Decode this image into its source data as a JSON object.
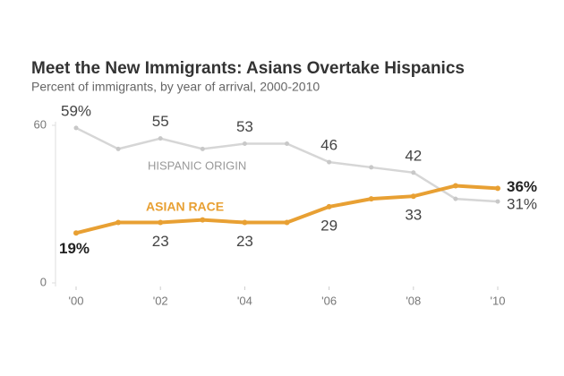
{
  "chart_data": {
    "type": "line",
    "title": "Meet the New Immigrants: Asians Overtake Hispanics",
    "subtitle": "Percent of immigrants, by year of arrival, 2000-2010",
    "x": [
      2000,
      2001,
      2002,
      2003,
      2004,
      2005,
      2006,
      2007,
      2008,
      2009,
      2010
    ],
    "xlim": [
      2000,
      2010
    ],
    "xticks": [
      {
        "value": 2000,
        "label": "'00"
      },
      {
        "value": 2002,
        "label": "'02"
      },
      {
        "value": 2004,
        "label": "'04"
      },
      {
        "value": 2006,
        "label": "'06"
      },
      {
        "value": 2008,
        "label": "'08"
      },
      {
        "value": 2010,
        "label": "'10"
      }
    ],
    "ylim": [
      0,
      60
    ],
    "yticks": [
      0,
      60
    ],
    "series": [
      {
        "name": "HISPANIC ORIGIN",
        "color": "#d6d6d6",
        "values": [
          59,
          51,
          55,
          51,
          53,
          53,
          46,
          44,
          42,
          32,
          31
        ],
        "value_labels": [
          "59%",
          null,
          "55",
          null,
          "53",
          null,
          "46",
          null,
          "42",
          null,
          "31%"
        ]
      },
      {
        "name": "ASIAN RACE",
        "color": "#e8a033",
        "values": [
          19,
          23,
          23,
          24,
          23,
          23,
          29,
          32,
          33,
          37,
          36
        ],
        "value_labels": [
          "19%",
          null,
          "23",
          null,
          "23",
          null,
          "29",
          null,
          "33",
          null,
          "36%"
        ]
      }
    ]
  }
}
